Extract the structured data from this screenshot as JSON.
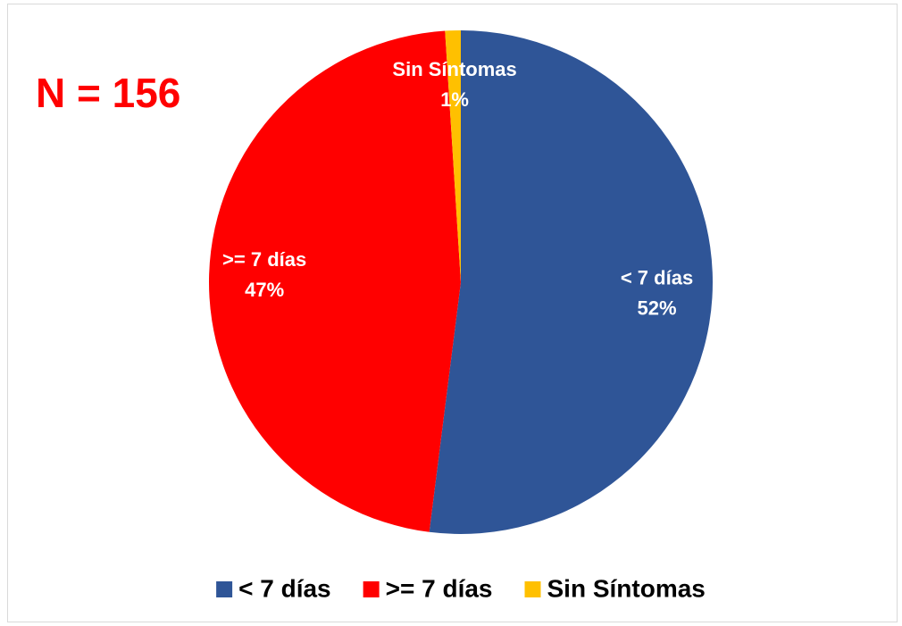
{
  "chart_data": {
    "type": "pie",
    "annotation": "N = 156",
    "categories": [
      "< 7 días",
      ">= 7 días",
      "Sin Síntomas"
    ],
    "values": [
      52,
      47,
      1
    ],
    "value_labels": [
      "52%",
      "47%",
      "1%"
    ],
    "colors": [
      "#2f5597",
      "#ff0000",
      "#ffc000"
    ],
    "legend": "bottom"
  }
}
